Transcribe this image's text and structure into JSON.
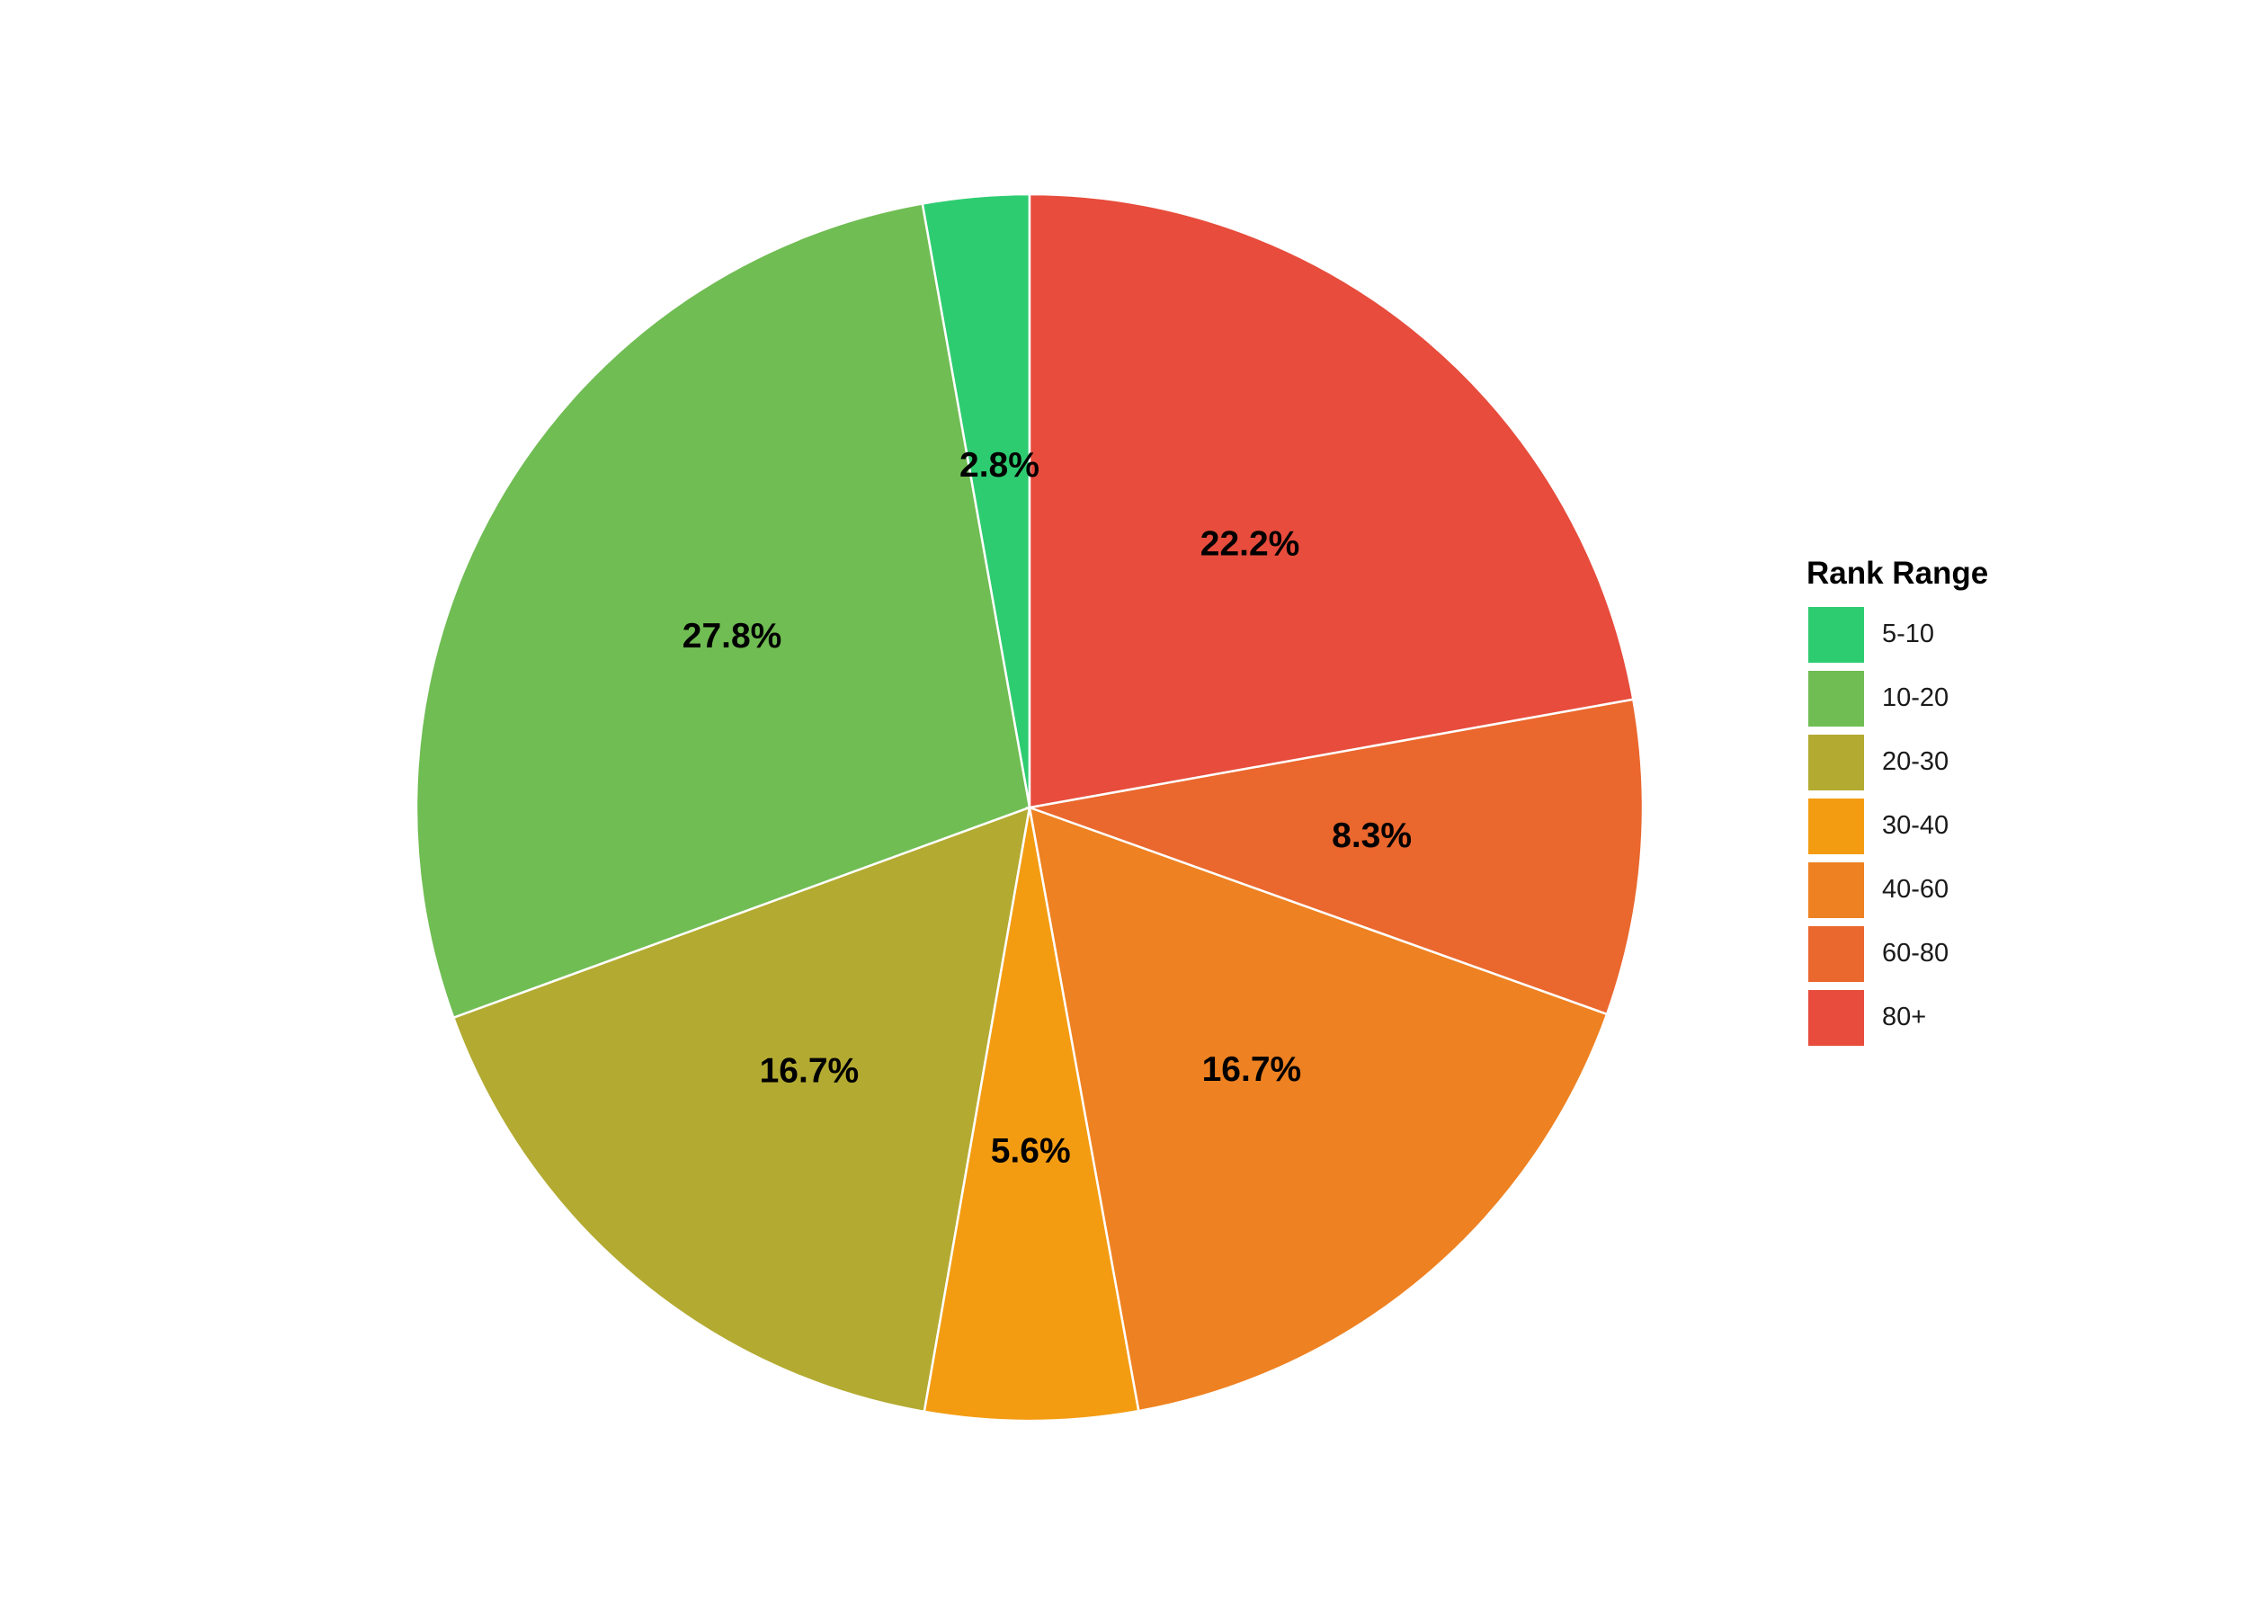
{
  "chart_data": {
    "type": "pie",
    "title": "",
    "legend": {
      "title": "Rank Range",
      "placement": "right"
    },
    "slices": [
      {
        "label": "5-10",
        "value": 2.8,
        "display": "2.8%",
        "color": "#2ECC71"
      },
      {
        "label": "10-20",
        "value": 27.8,
        "display": "27.8%",
        "color": "#70BD53"
      },
      {
        "label": "20-30",
        "value": 16.7,
        "display": "16.7%",
        "color": "#B3AA31"
      },
      {
        "label": "30-40",
        "value": 5.6,
        "display": "5.6%",
        "color": "#F39C12"
      },
      {
        "label": "40-60",
        "value": 16.7,
        "display": "16.7%",
        "color": "#EE8121"
      },
      {
        "label": "60-80",
        "value": 8.3,
        "display": "8.3%",
        "color": "#EA672E"
      },
      {
        "label": "80+",
        "value": 22.2,
        "display": "22.2%",
        "color": "#E74C3C"
      }
    ],
    "direction": "counterclockwise",
    "start": "top"
  }
}
